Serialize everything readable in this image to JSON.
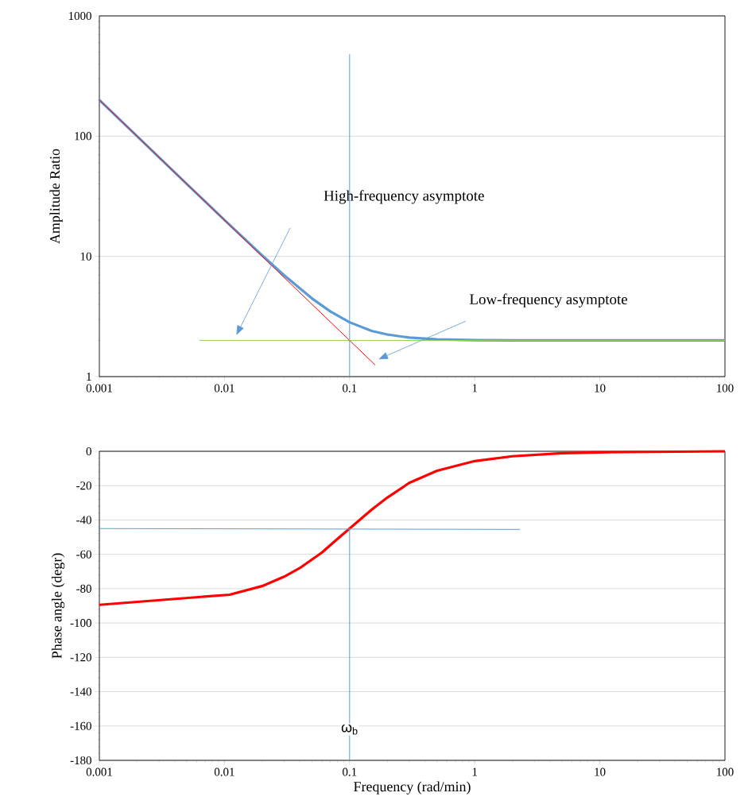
{
  "chart_data": [
    {
      "type": "line",
      "ylabel": "Amplitude Ratio",
      "log": "xy",
      "grid": "y",
      "marker": "none",
      "line_style": "solid",
      "xlim": [
        0.001,
        100
      ],
      "xticks": [
        0.001,
        0.01,
        0.1,
        1,
        10,
        100
      ],
      "ylim": [
        1,
        1000
      ],
      "yticks": [
        1,
        10,
        100,
        1000
      ],
      "series": [
        {
          "color": "#5b9bd5",
          "x": [
            0.001,
            0.002,
            0.005,
            0.01,
            0.02,
            0.03,
            0.05,
            0.07,
            0.1,
            0.15,
            0.2,
            0.3,
            0.5,
            1,
            2,
            10,
            100
          ],
          "values": [
            200,
            100,
            40,
            20.1,
            10.2,
            6.96,
            4.47,
            3.49,
            2.83,
            2.4,
            2.24,
            2.11,
            2.04,
            2.01,
            2,
            2,
            2
          ]
        },
        {
          "color": "#ff0000",
          "x": [
            0.001,
            0.16
          ],
          "values": [
            200,
            1.25
          ]
        },
        {
          "color": "#92d050",
          "x": [
            0.0063,
            100
          ],
          "values": [
            2,
            2
          ]
        },
        {
          "color": "#5b9bd5",
          "x": [
            0.1,
            0.1
          ],
          "values": [
            1,
            480
          ]
        }
      ],
      "annotations": [
        "High-frequency asymptote",
        "Low-frequency asymptote"
      ]
    },
    {
      "type": "line",
      "xlabel": "Frequency (rad/min)",
      "ylabel": "Phase angle (degr)",
      "log": "x",
      "grid": "y",
      "marker": "none",
      "line_style": "solid",
      "xlim": [
        0.001,
        100
      ],
      "xticks": [
        0.001,
        0.01,
        0.1,
        1,
        10,
        100
      ],
      "ylim": [
        -180,
        0
      ],
      "yticks": [
        -180,
        -160,
        -140,
        -120,
        -100,
        -80,
        -60,
        -40,
        -20,
        0
      ],
      "series": [
        {
          "color": "#ff0000",
          "x": [
            0.001,
            0.011,
            0.02,
            0.03,
            0.04,
            0.06,
            0.08,
            0.1,
            0.15,
            0.2,
            0.3,
            0.5,
            1,
            2,
            5,
            10,
            100
          ],
          "values": [
            -89.4,
            -83.5,
            -78.5,
            -73,
            -68,
            -59,
            -51,
            -45,
            -34,
            -27,
            -18.4,
            -11.3,
            -5.7,
            -2.9,
            -1.1,
            -0.6,
            0
          ]
        },
        {
          "color": "#5b9bd5",
          "x": [
            0.001,
            2.3
          ],
          "values": [
            -45,
            -45.5
          ]
        },
        {
          "color": "#5b9bd5",
          "x": [
            0.1,
            0.1
          ],
          "values": [
            -45,
            -180
          ]
        }
      ],
      "annotations": [
        {
          "text": "ω$_{b}$",
          "x": 0.1,
          "y": -162
        }
      ]
    }
  ]
}
